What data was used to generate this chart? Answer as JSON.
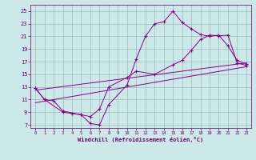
{
  "title": "",
  "xlabel": "Windchill (Refroidissement éolien,°C)",
  "bg_color": "#cce8e8",
  "line_color": "#880088",
  "grid_color": "#99bbbb",
  "xlim": [
    -0.5,
    23.5
  ],
  "ylim": [
    6.5,
    26
  ],
  "xticks": [
    0,
    1,
    2,
    3,
    4,
    5,
    6,
    7,
    8,
    9,
    10,
    11,
    12,
    13,
    14,
    15,
    16,
    17,
    18,
    19,
    20,
    21,
    22,
    23
  ],
  "yticks": [
    7,
    9,
    11,
    13,
    15,
    17,
    19,
    21,
    23,
    25
  ],
  "lines": [
    {
      "x": [
        0,
        1,
        3,
        4,
        5,
        6,
        7,
        8,
        10,
        11,
        12,
        13,
        14,
        15,
        16,
        17,
        18,
        19,
        20,
        21,
        22,
        23
      ],
      "y": [
        12.8,
        11.0,
        9.0,
        8.8,
        8.6,
        7.2,
        7.0,
        10.2,
        13.3,
        17.4,
        21.0,
        23.0,
        23.3,
        25.0,
        23.2,
        22.2,
        21.3,
        21.0,
        21.2,
        19.5,
        17.2,
        16.6
      ],
      "marker": true
    },
    {
      "x": [
        0,
        1,
        2,
        3,
        5,
        6,
        7,
        8,
        10,
        11,
        13,
        15,
        16,
        17,
        18,
        19,
        20,
        21,
        22,
        23
      ],
      "y": [
        12.8,
        11.0,
        10.8,
        9.2,
        8.6,
        8.3,
        9.5,
        13.0,
        14.5,
        15.5,
        15.0,
        16.5,
        17.2,
        18.8,
        20.5,
        21.2,
        21.1,
        21.2,
        16.8,
        16.4
      ],
      "marker": true
    },
    {
      "x": [
        0,
        23
      ],
      "y": [
        10.5,
        16.2
      ],
      "marker": false
    },
    {
      "x": [
        0,
        23
      ],
      "y": [
        12.5,
        16.8
      ],
      "marker": false
    }
  ]
}
